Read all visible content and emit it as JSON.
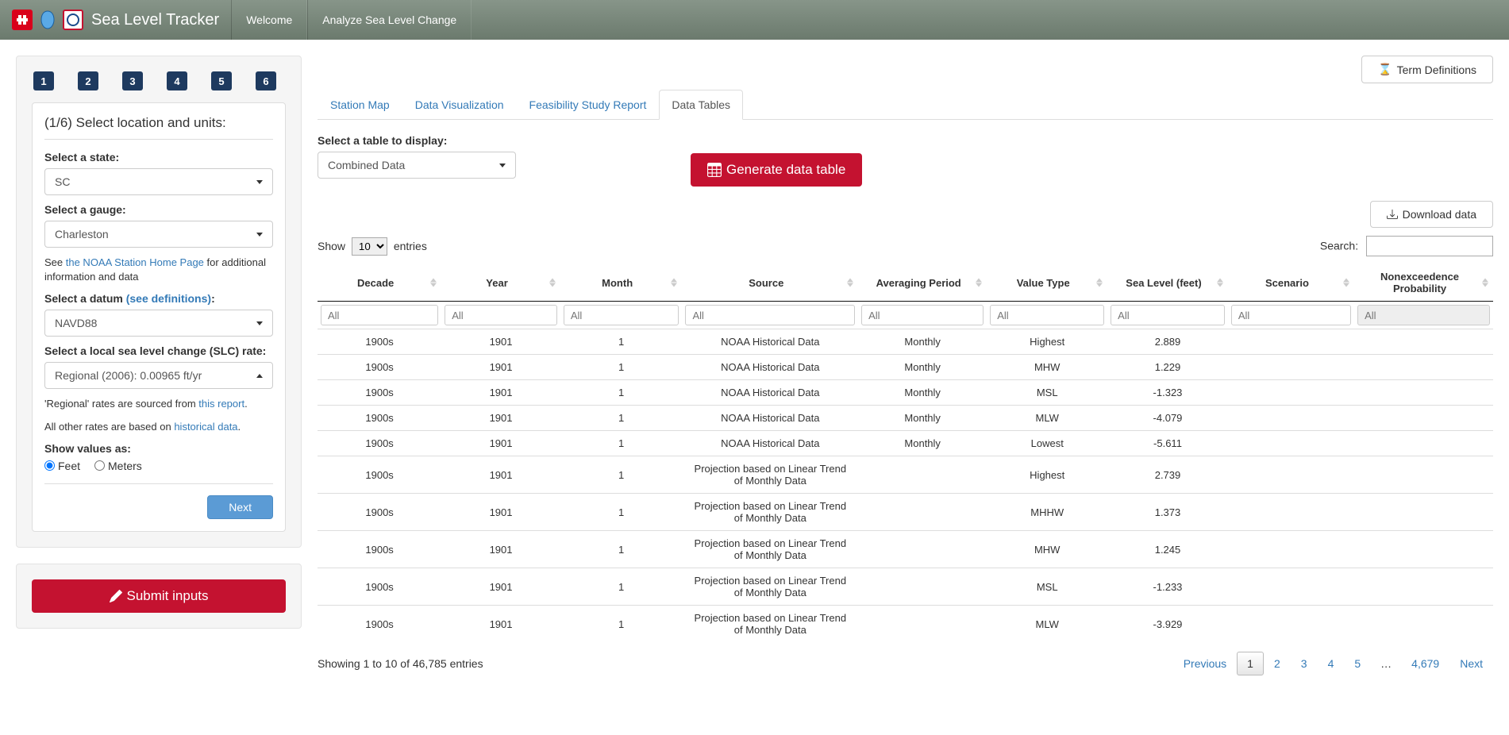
{
  "navbar": {
    "title": "Sea Level Tracker",
    "tabs": [
      "Welcome",
      "Analyze Sea Level Change"
    ]
  },
  "termDefinitionsBtn": "Term Definitions",
  "sidebar": {
    "steps": [
      "1",
      "2",
      "3",
      "4",
      "5",
      "6"
    ],
    "sectionTitle": "(1/6) Select location and units:",
    "stateLabel": "Select a state:",
    "stateValue": "SC",
    "gaugeLabel": "Select a gauge:",
    "gaugeValue": "Charleston",
    "noaaPrefix": "See ",
    "noaaLink": "the NOAA Station Home Page",
    "noaaSuffix": " for additional information and data",
    "datumLabel": "Select a datum ",
    "datumLink": "(see definitions)",
    "datumColon": ":",
    "datumValue": "NAVD88",
    "slcLabel": "Select a local sea level change (SLC) rate:",
    "slcValue": "Regional (2006): 0.00965 ft/yr",
    "regionalPrefix": "'Regional' rates are sourced from ",
    "regionalLink": "this report",
    "regionalSuffix": ".",
    "otherRatesPrefix": "All other rates are based on ",
    "otherRatesLink": "historical data",
    "otherRatesSuffix": ".",
    "unitsLabel": "Show values as:",
    "unitFeet": "Feet",
    "unitMeters": "Meters",
    "nextBtn": "Next",
    "submitBtn": "Submit inputs"
  },
  "mainTabs": {
    "items": [
      "Station Map",
      "Data Visualization",
      "Feasibility Study Report",
      "Data Tables"
    ],
    "activeIndex": 3
  },
  "tableSelectLabel": "Select a table to display:",
  "tableSelectValue": "Combined Data",
  "generateBtn": "Generate data table",
  "downloadBtn": "Download data",
  "dtShow": "Show",
  "dtEntriesWord": "entries",
  "dtEntriesValue": "10",
  "dtSearchLabel": "Search:",
  "columns": [
    "Decade",
    "Year",
    "Month",
    "Source",
    "Averaging Period",
    "Value Type",
    "Sea Level (feet)",
    "Scenario",
    "Nonexceedence Probability"
  ],
  "filterPlaceholder": "All",
  "rows": [
    [
      "1900s",
      "1901",
      "1",
      "NOAA Historical Data",
      "Monthly",
      "Highest",
      "2.889",
      "",
      ""
    ],
    [
      "1900s",
      "1901",
      "1",
      "NOAA Historical Data",
      "Monthly",
      "MHW",
      "1.229",
      "",
      ""
    ],
    [
      "1900s",
      "1901",
      "1",
      "NOAA Historical Data",
      "Monthly",
      "MSL",
      "-1.323",
      "",
      ""
    ],
    [
      "1900s",
      "1901",
      "1",
      "NOAA Historical Data",
      "Monthly",
      "MLW",
      "-4.079",
      "",
      ""
    ],
    [
      "1900s",
      "1901",
      "1",
      "NOAA Historical Data",
      "Monthly",
      "Lowest",
      "-5.611",
      "",
      ""
    ],
    [
      "1900s",
      "1901",
      "1",
      "Projection based on Linear Trend of Monthly Data",
      "",
      "Highest",
      "2.739",
      "",
      ""
    ],
    [
      "1900s",
      "1901",
      "1",
      "Projection based on Linear Trend of Monthly Data",
      "",
      "MHHW",
      "1.373",
      "",
      ""
    ],
    [
      "1900s",
      "1901",
      "1",
      "Projection based on Linear Trend of Monthly Data",
      "",
      "MHW",
      "1.245",
      "",
      ""
    ],
    [
      "1900s",
      "1901",
      "1",
      "Projection based on Linear Trend of Monthly Data",
      "",
      "MSL",
      "-1.233",
      "",
      ""
    ],
    [
      "1900s",
      "1901",
      "1",
      "Projection based on Linear Trend of Monthly Data",
      "",
      "MLW",
      "-3.929",
      "",
      ""
    ]
  ],
  "dtInfo": "Showing 1 to 10 of 46,785 entries",
  "dtPrev": "Previous",
  "dtNext": "Next",
  "dtPages": [
    "1",
    "2",
    "3",
    "4",
    "5",
    "…",
    "4,679"
  ],
  "dtActivePage": 0
}
